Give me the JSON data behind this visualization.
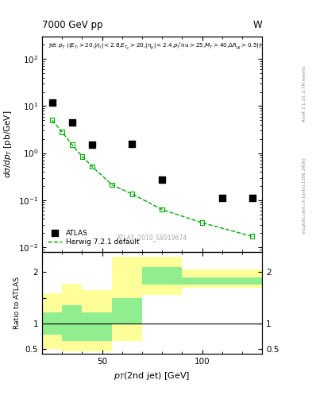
{
  "title_left": "7000 GeV pp",
  "title_right": "W",
  "watermark": "ATLAS_2010_S8919674",
  "right_label": "Rivet 3.1.10, 2.7M events",
  "right_label2": "mcplots.cern.ch [arXiv:1306.3436]",
  "atlas_x": [
    25,
    35,
    45,
    65,
    80,
    110,
    125
  ],
  "atlas_y": [
    12.0,
    4.5,
    1.5,
    1.6,
    0.27,
    0.11,
    0.11
  ],
  "herwig_x": [
    25,
    30,
    35,
    40,
    45,
    55,
    65,
    80,
    100,
    125
  ],
  "herwig_y": [
    5.0,
    2.8,
    1.5,
    0.85,
    0.52,
    0.21,
    0.135,
    0.063,
    0.033,
    0.017
  ],
  "bin_edges": [
    20,
    30,
    40,
    55,
    70,
    90,
    130
  ],
  "ratio_green_lo": [
    0.78,
    0.65,
    0.65,
    1.0,
    1.75,
    1.75
  ],
  "ratio_green_hi": [
    1.22,
    1.35,
    1.22,
    1.5,
    2.1,
    1.9
  ],
  "ratio_yellow_lo": [
    0.5,
    0.45,
    0.45,
    0.65,
    1.55,
    1.7
  ],
  "ratio_yellow_hi": [
    1.58,
    1.78,
    1.65,
    2.3,
    2.3,
    2.05
  ],
  "xlim": [
    20,
    130
  ],
  "ylim_main": [
    0.008,
    300
  ],
  "ylim_ratio": [
    0.4,
    2.4
  ],
  "atlas_color": "#000000",
  "herwig_color": "#00aa00",
  "green_band_color": "#90ee90",
  "yellow_band_color": "#ffff99",
  "atlas_markersize": 6,
  "herwig_markersize": 4
}
